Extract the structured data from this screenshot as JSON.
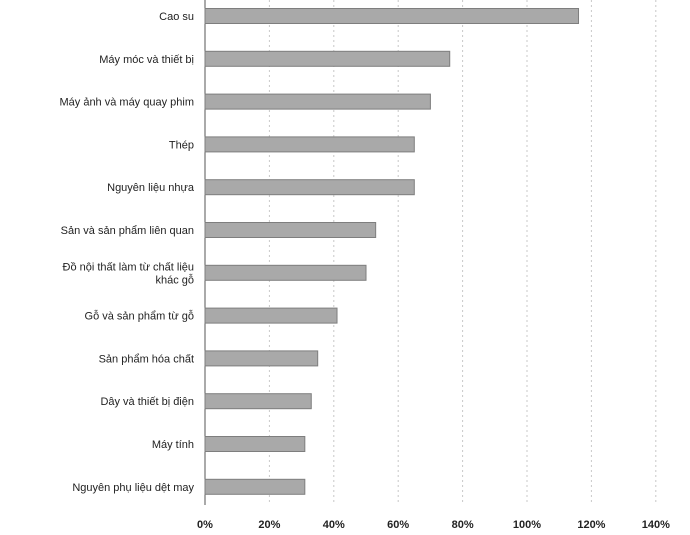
{
  "chart_data": {
    "type": "bar",
    "orientation": "horizontal",
    "title": "",
    "xlabel": "",
    "ylabel": "",
    "categories": [
      "Cao su",
      "Máy móc và thiết bị",
      "Máy ảnh và máy quay phim",
      "Thép",
      "Nguyên liệu nhựa",
      "Sản và sản phẩm liên quan",
      "Đồ nội thất làm từ chất liệu khác gỗ",
      "Gỗ và sản phẩm từ gỗ",
      "Sản phẩm hóa chất",
      "Dây và thiết bị điện",
      "Máy tính",
      "Nguyên phụ liệu dệt may"
    ],
    "category_label_lines": [
      [
        "Cao su"
      ],
      [
        "Máy móc và thiết bị"
      ],
      [
        "Máy ảnh và máy quay phim"
      ],
      [
        "Thép"
      ],
      [
        "Nguyên liệu nhựa"
      ],
      [
        "Sản và sản phẩm liên quan"
      ],
      [
        "Đồ nội thất làm từ chất liệu",
        "khác gỗ"
      ],
      [
        "Gỗ và sản phẩm từ gỗ"
      ],
      [
        "Sản phẩm hóa chất"
      ],
      [
        "Dây và thiết bị điện"
      ],
      [
        "Máy tính"
      ],
      [
        "Nguyên phụ liệu dệt may"
      ]
    ],
    "values": [
      116,
      76,
      70,
      65,
      65,
      53,
      50,
      41,
      35,
      33,
      31,
      31
    ],
    "unit": "%",
    "xlim": [
      0,
      140
    ],
    "ticks": [
      0,
      20,
      40,
      60,
      80,
      100,
      120,
      140
    ],
    "tick_labels": [
      "0%",
      "20%",
      "40%",
      "60%",
      "80%",
      "100%",
      "120%",
      "140%"
    ],
    "grid": "vertical-dashed",
    "legend": "none",
    "colors": {
      "bar_fill": "#a9a9a9",
      "bar_edge": "#7e7e7e",
      "grid": "#c8c8c8",
      "text": "#222222"
    }
  }
}
